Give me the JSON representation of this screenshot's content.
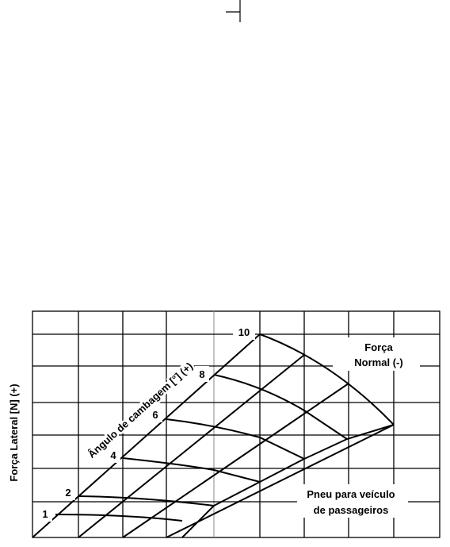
{
  "y_axis_label": "Força Lateral [N] (+)",
  "diagonal_label": "Ângulo de cambagem [°] (+)",
  "angle_labels": [
    "1",
    "2",
    "4",
    "6",
    "8",
    "10"
  ],
  "normal_force_label": [
    "Força",
    "Normal (-)"
  ],
  "tire_label": [
    "Pneu para veículo",
    "de passageiros"
  ]
}
